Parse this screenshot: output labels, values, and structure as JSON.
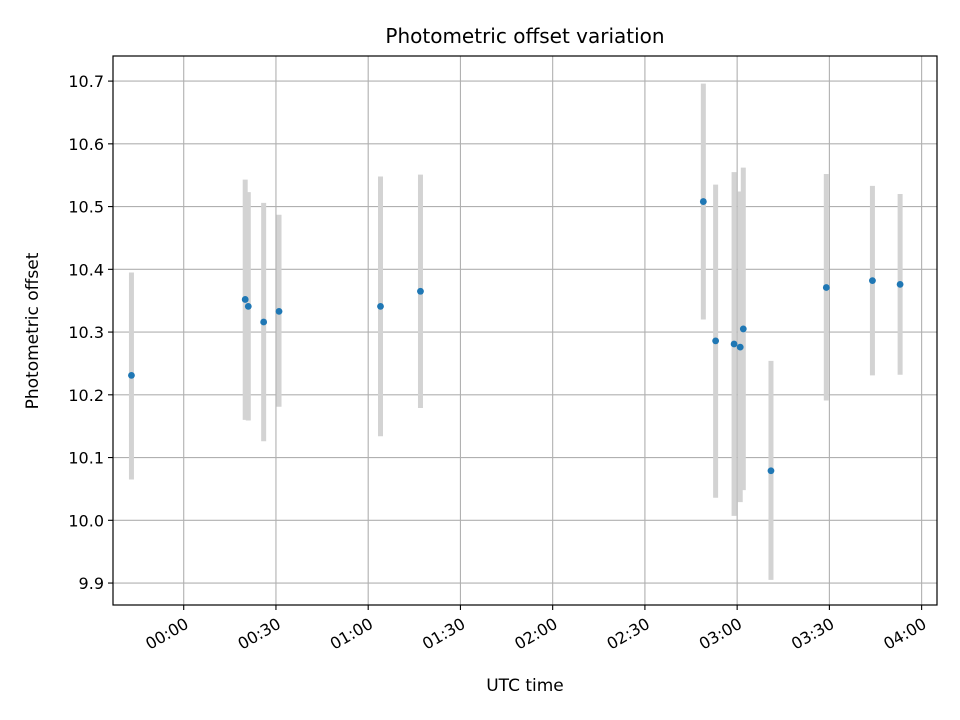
{
  "chart_data": {
    "type": "scatter",
    "title": "Photometric offset variation",
    "xlabel": "UTC time",
    "ylabel": "Photometric offset",
    "x_ticks": [
      "00:00",
      "00:30",
      "01:00",
      "01:30",
      "02:00",
      "02:30",
      "03:00",
      "03:30",
      "04:00"
    ],
    "y_ticks": [
      9.9,
      10.0,
      10.1,
      10.2,
      10.3,
      10.4,
      10.5,
      10.6,
      10.7
    ],
    "xlim": [
      "23:37",
      "04:05"
    ],
    "ylim": [
      9.865,
      10.74
    ],
    "grid": true,
    "point_color": "#1f77b4",
    "errorbar_color": "#d3d3d3",
    "points": [
      {
        "x": "23:43",
        "y": 10.231,
        "y_low": 10.065,
        "y_high": 10.395
      },
      {
        "x": "00:20",
        "y": 10.352,
        "y_low": 10.16,
        "y_high": 10.543
      },
      {
        "x": "00:21",
        "y": 10.341,
        "y_low": 10.159,
        "y_high": 10.523
      },
      {
        "x": "00:26",
        "y": 10.316,
        "y_low": 10.126,
        "y_high": 10.506
      },
      {
        "x": "00:31",
        "y": 10.333,
        "y_low": 10.181,
        "y_high": 10.487
      },
      {
        "x": "01:04",
        "y": 10.341,
        "y_low": 10.134,
        "y_high": 10.548
      },
      {
        "x": "01:17",
        "y": 10.365,
        "y_low": 10.179,
        "y_high": 10.551
      },
      {
        "x": "02:49",
        "y": 10.508,
        "y_low": 10.32,
        "y_high": 10.696
      },
      {
        "x": "02:53",
        "y": 10.286,
        "y_low": 10.036,
        "y_high": 10.535
      },
      {
        "x": "02:59",
        "y": 10.281,
        "y_low": 10.007,
        "y_high": 10.555
      },
      {
        "x": "03:01",
        "y": 10.276,
        "y_low": 10.029,
        "y_high": 10.524
      },
      {
        "x": "03:02",
        "y": 10.305,
        "y_low": 10.048,
        "y_high": 10.562
      },
      {
        "x": "03:11",
        "y": 10.079,
        "y_low": 9.905,
        "y_high": 10.254
      },
      {
        "x": "03:29",
        "y": 10.371,
        "y_low": 10.191,
        "y_high": 10.552
      },
      {
        "x": "03:44",
        "y": 10.382,
        "y_low": 10.231,
        "y_high": 10.533
      },
      {
        "x": "03:53",
        "y": 10.376,
        "y_low": 10.232,
        "y_high": 10.52
      }
    ]
  }
}
